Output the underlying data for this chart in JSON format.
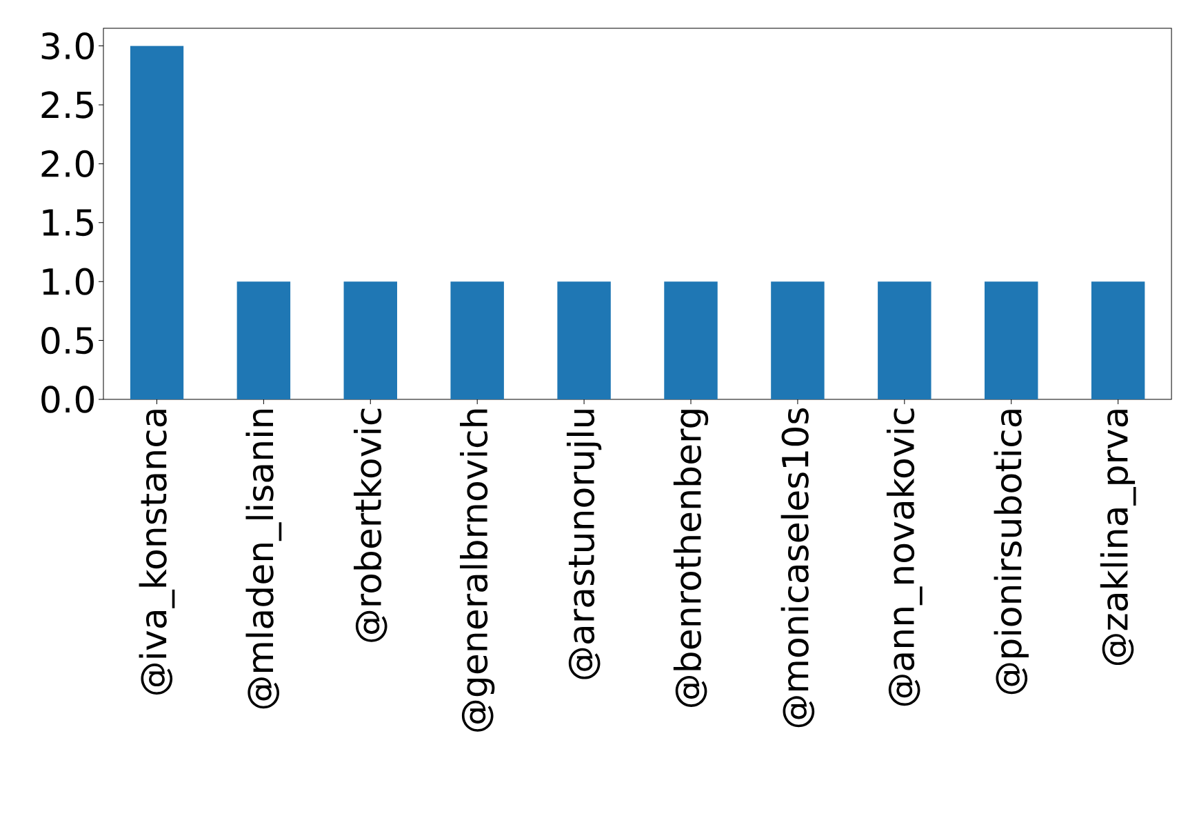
{
  "chart_data": {
    "type": "bar",
    "categories": [
      "@iva_konstanca",
      "@mladen_lisanin",
      "@robertkovic",
      "@generalbrnovich",
      "@arastunorujlu",
      "@benrothenberg",
      "@monicaseles10s",
      "@ann_novakovic",
      "@pionirsubotica",
      "@zaklina_prva"
    ],
    "values": [
      3,
      1,
      1,
      1,
      1,
      1,
      1,
      1,
      1,
      1
    ],
    "color": "#1f77b4",
    "ylim": [
      0,
      3.15
    ],
    "yticks": [
      {
        "value": 0,
        "label": "0.0"
      },
      {
        "value": 0.5,
        "label": "0.5"
      },
      {
        "value": 1,
        "label": "1.0"
      },
      {
        "value": 1.5,
        "label": "1.5"
      },
      {
        "value": 2,
        "label": "2.0"
      },
      {
        "value": 2.5,
        "label": "2.5"
      },
      {
        "value": 3,
        "label": "3.0"
      }
    ]
  }
}
